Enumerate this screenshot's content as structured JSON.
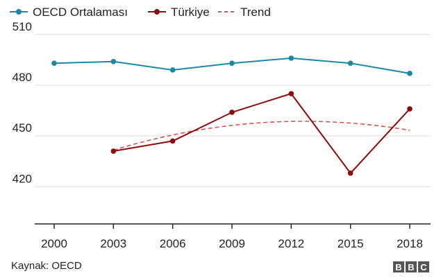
{
  "chart_data": {
    "type": "line",
    "x": [
      2000,
      2003,
      2006,
      2009,
      2012,
      2015,
      2018
    ],
    "x_tick_labels": [
      "2000",
      "2003",
      "2006",
      "2009",
      "2012",
      "2015",
      "2018"
    ],
    "y_tick_values": [
      510,
      480,
      450,
      420
    ],
    "y_tick_labels": [
      "510",
      "480",
      "450",
      "420"
    ],
    "ylim": [
      391,
      514
    ],
    "grid": true,
    "legend_position": "top-left",
    "series": [
      {
        "name": "OECD Ortalaması",
        "color": "#1b88a3",
        "style": "solid-markers",
        "x": [
          2000,
          2003,
          2006,
          2009,
          2012,
          2015,
          2018
        ],
        "values": [
          493,
          494,
          489,
          493,
          496,
          493,
          487
        ]
      },
      {
        "name": "Türkiye",
        "color": "#8e0a0a",
        "style": "solid-markers",
        "x": [
          2003,
          2006,
          2009,
          2012,
          2015,
          2018
        ],
        "values": [
          441,
          447,
          464,
          475,
          428,
          466
        ]
      },
      {
        "name": "Trend",
        "color": "#d9534f",
        "style": "dashed",
        "x": [
          2003,
          2006,
          2009,
          2012,
          2015,
          2018
        ],
        "values": [
          442,
          450,
          456,
          459,
          458,
          453
        ]
      }
    ]
  },
  "footer": {
    "source": "Kaynak: OECD",
    "logo_letters": [
      "B",
      "B",
      "C"
    ]
  }
}
